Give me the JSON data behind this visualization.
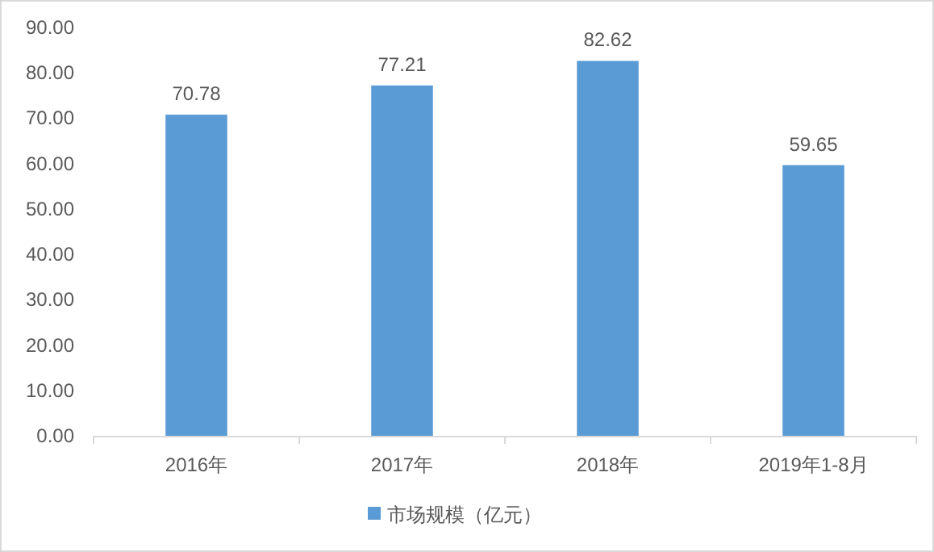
{
  "chart_data": {
    "type": "bar",
    "categories": [
      "2016年",
      "2017年",
      "2018年",
      "2019年1-8月"
    ],
    "series": [
      {
        "name": "市场规模（亿元）",
        "color": "#5b9bd5",
        "values": [
          70.78,
          77.21,
          82.62,
          59.65
        ]
      }
    ],
    "ylim": [
      0,
      90
    ],
    "yticks": [
      {
        "value": 0,
        "label": "0.00"
      },
      {
        "value": 10,
        "label": "10.00"
      },
      {
        "value": 20,
        "label": "20.00"
      },
      {
        "value": 30,
        "label": "30.00"
      },
      {
        "value": 40,
        "label": "40.00"
      },
      {
        "value": 50,
        "label": "50.00"
      },
      {
        "value": 60,
        "label": "60.00"
      },
      {
        "value": 70,
        "label": "70.00"
      },
      {
        "value": 80,
        "label": "80.00"
      },
      {
        "value": 90,
        "label": "90.00"
      }
    ],
    "data_labels": true,
    "legend": "bottom",
    "grid": false
  }
}
